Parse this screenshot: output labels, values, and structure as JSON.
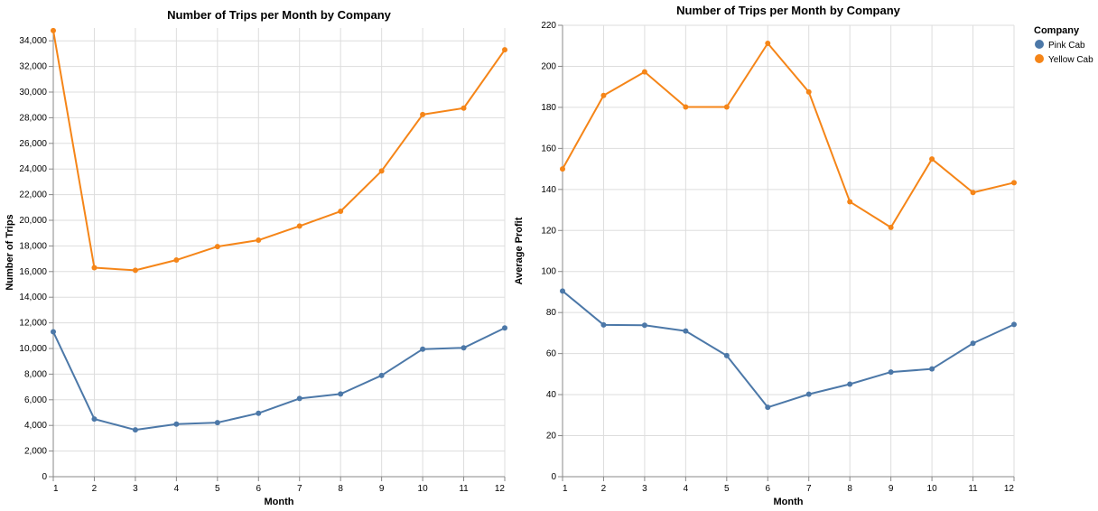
{
  "colors": {
    "pink_cab": "#4c78a8",
    "yellow_cab": "#f58518"
  },
  "legend": {
    "title": "Company",
    "items": [
      {
        "label": "Pink Cab",
        "color": "#4c78a8"
      },
      {
        "label": "Yellow Cab",
        "color": "#f58518"
      }
    ]
  },
  "chart_data": [
    {
      "type": "line",
      "title": "Number of Trips per Month by Company",
      "xlabel": "Month",
      "ylabel": "Number of Trips",
      "x": [
        1,
        2,
        3,
        4,
        5,
        6,
        7,
        8,
        9,
        10,
        11,
        12
      ],
      "ylim": [
        0,
        35000
      ],
      "yticks": [
        0,
        2000,
        4000,
        6000,
        8000,
        10000,
        12000,
        14000,
        16000,
        18000,
        20000,
        22000,
        24000,
        26000,
        28000,
        30000,
        32000,
        34000
      ],
      "grid": true,
      "series": [
        {
          "name": "Pink Cab",
          "color": "#4c78a8",
          "values": [
            11300,
            4500,
            3650,
            4100,
            4220,
            4950,
            6100,
            6450,
            7900,
            9950,
            10050,
            11600
          ]
        },
        {
          "name": "Yellow Cab",
          "color": "#f58518",
          "values": [
            34800,
            16300,
            16100,
            16900,
            17950,
            18450,
            19550,
            20700,
            23850,
            28250,
            28750,
            33300
          ]
        }
      ]
    },
    {
      "type": "line",
      "title": "Number of Trips per Month by Company",
      "xlabel": "Month",
      "ylabel": "Average Profit",
      "x": [
        1,
        2,
        3,
        4,
        5,
        6,
        7,
        8,
        9,
        10,
        11,
        12
      ],
      "ylim": [
        0,
        220
      ],
      "yticks": [
        0,
        20,
        40,
        60,
        80,
        100,
        120,
        140,
        160,
        180,
        200,
        220
      ],
      "grid": true,
      "legend": "top-right",
      "series": [
        {
          "name": "Pink Cab",
          "color": "#4c78a8",
          "values": [
            90.5,
            74,
            73.8,
            71,
            59,
            33.8,
            40.2,
            45.1,
            51,
            52.5,
            65,
            74.2
          ]
        },
        {
          "name": "Yellow Cab",
          "color": "#f58518",
          "values": [
            150,
            185.8,
            197.3,
            180.2,
            180.2,
            211.2,
            187.5,
            134,
            121.5,
            154.8,
            138.5,
            143.3
          ]
        }
      ]
    }
  ]
}
